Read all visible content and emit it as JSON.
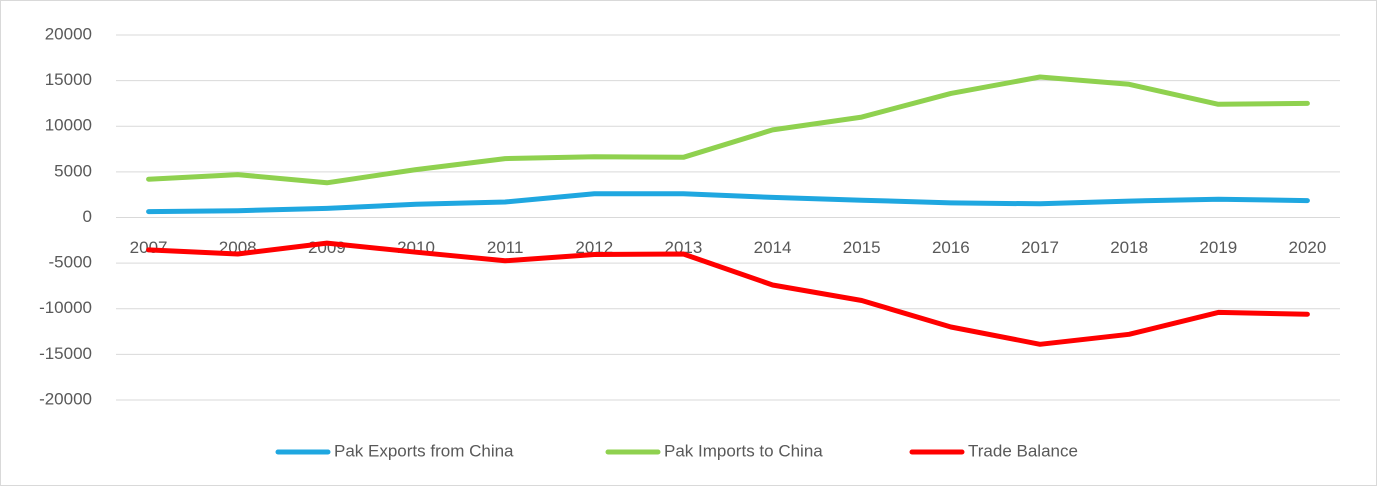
{
  "chart_data": {
    "type": "line",
    "categories": [
      "2007",
      "2008",
      "2009",
      "2010",
      "2011",
      "2012",
      "2013",
      "2014",
      "2015",
      "2016",
      "2017",
      "2018",
      "2019",
      "2020"
    ],
    "series": [
      {
        "name": "Pak Exports from China",
        "color": "#1fa7e0",
        "values": [
          650,
          750,
          1000,
          1450,
          1700,
          2600,
          2600,
          2200,
          1900,
          1600,
          1500,
          1800,
          2000,
          1850
        ]
      },
      {
        "name": "Pak Imports to China",
        "color": "#8fd14f",
        "values": [
          4200,
          4700,
          3800,
          5250,
          6450,
          6650,
          6600,
          9600,
          11000,
          13600,
          15400,
          14600,
          12400,
          12500
        ]
      },
      {
        "name": "Trade Balance",
        "color": "#ff0000",
        "values": [
          -3550,
          -4000,
          -2800,
          -3800,
          -4750,
          -4050,
          -4000,
          -7400,
          -9100,
          -12000,
          -13900,
          -12800,
          -10400,
          -10600
        ]
      }
    ],
    "ylim": [
      -20000,
      20000
    ],
    "yticks": [
      -20000,
      -15000,
      -10000,
      -5000,
      0,
      5000,
      10000,
      15000,
      20000
    ],
    "grid": true,
    "legend": "bottom"
  }
}
